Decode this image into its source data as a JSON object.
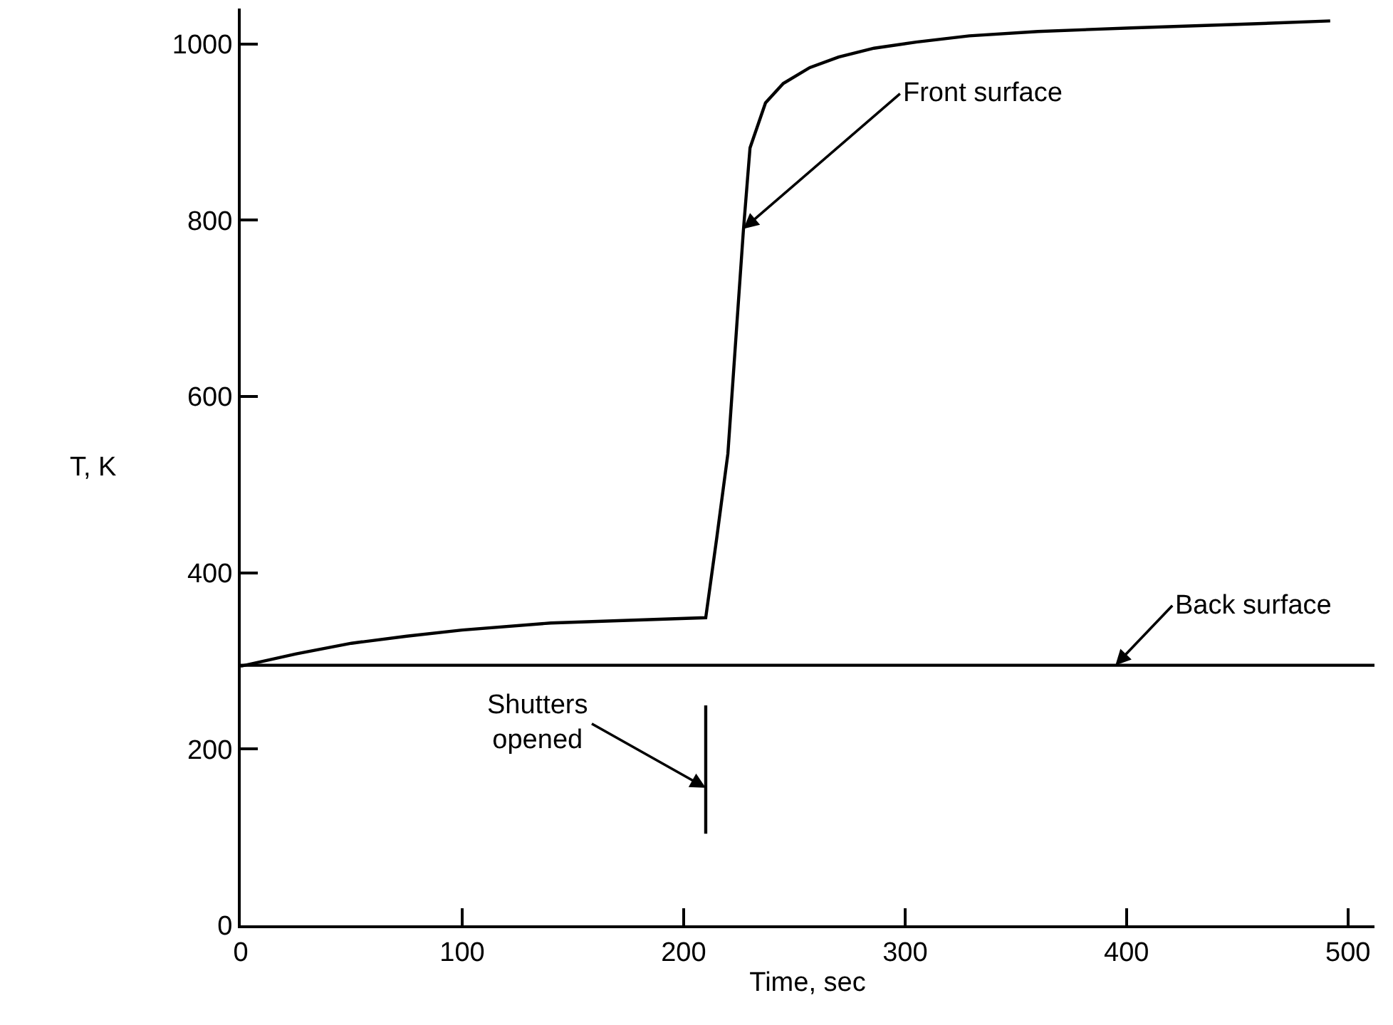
{
  "chart_data": {
    "type": "line",
    "xlabel": "Time, sec",
    "ylabel": "T, K",
    "xlim": [
      0,
      512
    ],
    "ylim": [
      0,
      1040
    ],
    "xticks": [
      0,
      100,
      200,
      300,
      400,
      500
    ],
    "yticks": [
      0,
      200,
      400,
      600,
      800,
      1000
    ],
    "marker": "none",
    "line_style": "solid",
    "series": [
      {
        "color": "#000000",
        "x": [
          0,
          25,
          50,
          75,
          100,
          140,
          175,
          210,
          215,
          220,
          224,
          227,
          230,
          237,
          245,
          257,
          270,
          286,
          305,
          329,
          360,
          402,
          450,
          492
        ],
        "values": [
          294,
          308,
          320,
          328,
          335,
          343,
          346,
          349,
          440,
          535,
          680,
          788,
          882,
          933,
          955,
          973,
          985,
          995,
          1002,
          1009,
          1014,
          1018,
          1022,
          1026
        ]
      },
      {
        "color": "#000000",
        "x": [
          0,
          512
        ],
        "values": [
          295,
          295
        ]
      }
    ],
    "ref_lines": [
      {
        "axis": "x",
        "value": 210,
        "label": "Shutters\nopened",
        "color": "#000000"
      }
    ],
    "annotations": [
      {
        "text": "Front surface",
        "x": 227,
        "y": 790
      },
      {
        "text": "Back surface",
        "x": 395,
        "y": 295
      }
    ]
  }
}
